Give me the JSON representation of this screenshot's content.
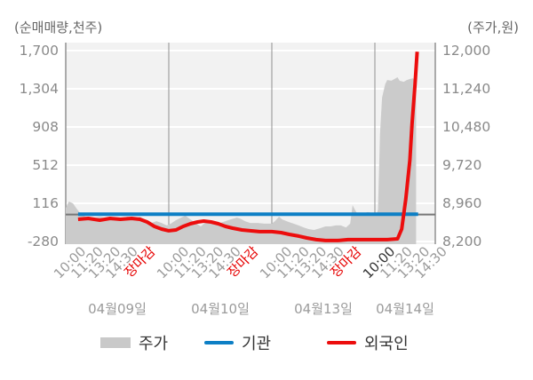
{
  "chart_data": {
    "type": "area+line",
    "title": "",
    "left_axis": {
      "caption": "(순매매량,천주)",
      "ticks": [
        {
          "label": "1,700",
          "value": 1700
        },
        {
          "label": "1,304",
          "value": 1304
        },
        {
          "label": "908",
          "value": 908
        },
        {
          "label": "512",
          "value": 512
        },
        {
          "label": "116",
          "value": 116
        },
        {
          "label": "-280",
          "value": -280
        }
      ]
    },
    "right_axis": {
      "caption": "(주가,원)",
      "ticks": [
        {
          "label": "12,000",
          "value": 12000
        },
        {
          "label": "11,240",
          "value": 11240
        },
        {
          "label": "10,480",
          "value": 10480
        },
        {
          "label": "9,720",
          "value": 9720
        },
        {
          "label": "8,960",
          "value": 8960
        },
        {
          "label": "8,200",
          "value": 8200
        }
      ]
    },
    "days": [
      {
        "label": "04월09일",
        "times": [
          "10:00",
          "11:20",
          "13:20",
          "14:30",
          "장마감"
        ]
      },
      {
        "label": "04월10일",
        "times": [
          "10:00",
          "11:20",
          "13:20",
          "14:30",
          "장마감"
        ]
      },
      {
        "label": "04월13일",
        "times": [
          "10:00",
          "11:20",
          "13:20",
          "14:30",
          "장마감"
        ]
      },
      {
        "label": "04월14일",
        "times": [
          "10:00",
          "11:20",
          "13:20",
          "14:30"
        ],
        "highlight_first_time": true
      }
    ],
    "colors": {
      "plot_background": "#f2f2f2",
      "gridline": "#ffffff",
      "day_separator": "#909090",
      "axis_line": "#909090",
      "zero_line": "#777777",
      "tick_text": "#8a8a8a",
      "time_text": "#9b9b9b",
      "time_text_close": "#e60000",
      "time_text_highlight": "#333333"
    },
    "series": [
      {
        "name": "주가",
        "type": "area",
        "axis": "right",
        "color": "#cbcbcb",
        "points": [
          [
            0.0,
            8870
          ],
          [
            0.03,
            8995
          ],
          [
            0.07,
            8960
          ],
          [
            0.1,
            8870
          ],
          [
            0.14,
            8765
          ],
          [
            0.19,
            8695
          ],
          [
            0.26,
            8660
          ],
          [
            0.33,
            8695
          ],
          [
            0.4,
            8660
          ],
          [
            0.47,
            8680
          ],
          [
            0.53,
            8660
          ],
          [
            0.6,
            8695
          ],
          [
            0.67,
            8660
          ],
          [
            0.72,
            8695
          ],
          [
            0.78,
            8625
          ],
          [
            0.83,
            8570
          ],
          [
            0.88,
            8605
          ],
          [
            0.93,
            8570
          ],
          [
            0.98,
            8520
          ],
          [
            1.02,
            8555
          ],
          [
            1.07,
            8625
          ],
          [
            1.12,
            8675
          ],
          [
            1.16,
            8715
          ],
          [
            1.21,
            8640
          ],
          [
            1.26,
            8570
          ],
          [
            1.31,
            8500
          ],
          [
            1.35,
            8570
          ],
          [
            1.4,
            8590
          ],
          [
            1.45,
            8555
          ],
          [
            1.5,
            8570
          ],
          [
            1.55,
            8605
          ],
          [
            1.6,
            8640
          ],
          [
            1.66,
            8675
          ],
          [
            1.69,
            8660
          ],
          [
            1.74,
            8605
          ],
          [
            1.79,
            8570
          ],
          [
            1.86,
            8570
          ],
          [
            1.93,
            8555
          ],
          [
            2.0,
            8555
          ],
          [
            2.03,
            8605
          ],
          [
            2.07,
            8695
          ],
          [
            2.1,
            8640
          ],
          [
            2.16,
            8590
          ],
          [
            2.21,
            8555
          ],
          [
            2.26,
            8520
          ],
          [
            2.31,
            8480
          ],
          [
            2.36,
            8445
          ],
          [
            2.41,
            8430
          ],
          [
            2.47,
            8465
          ],
          [
            2.52,
            8500
          ],
          [
            2.57,
            8500
          ],
          [
            2.62,
            8520
          ],
          [
            2.67,
            8520
          ],
          [
            2.72,
            8480
          ],
          [
            2.76,
            8555
          ],
          [
            2.784,
            8925
          ],
          [
            2.8,
            8855
          ],
          [
            2.83,
            8750
          ],
          [
            2.88,
            8750
          ],
          [
            2.93,
            8785
          ],
          [
            2.98,
            8765
          ],
          [
            3.02,
            8765
          ],
          [
            3.03,
            8835
          ],
          [
            3.05,
            10355
          ],
          [
            3.07,
            11065
          ],
          [
            3.1,
            11330
          ],
          [
            3.12,
            11415
          ],
          [
            3.16,
            11400
          ],
          [
            3.19,
            11435
          ],
          [
            3.22,
            11470
          ],
          [
            3.24,
            11400
          ],
          [
            3.28,
            11380
          ],
          [
            3.31,
            11415
          ],
          [
            3.34,
            11435
          ],
          [
            3.37,
            11450
          ],
          [
            3.39,
            11400
          ],
          [
            3.4,
            11330
          ]
        ]
      },
      {
        "name": "기관",
        "type": "line",
        "axis": "left",
        "color": "#0d7fc5",
        "points": [
          [
            0.12,
            3
          ],
          [
            1.0,
            3
          ],
          [
            2.0,
            3
          ],
          [
            3.0,
            3
          ],
          [
            3.42,
            3
          ]
        ]
      },
      {
        "name": "외국인",
        "type": "line",
        "axis": "left",
        "color": "#ec0d0d",
        "points": [
          [
            0.12,
            -50
          ],
          [
            0.22,
            -41
          ],
          [
            0.33,
            -59
          ],
          [
            0.43,
            -41
          ],
          [
            0.53,
            -50
          ],
          [
            0.64,
            -41
          ],
          [
            0.72,
            -50
          ],
          [
            0.79,
            -77
          ],
          [
            0.86,
            -123
          ],
          [
            0.93,
            -151
          ],
          [
            1.0,
            -169
          ],
          [
            1.07,
            -160
          ],
          [
            1.14,
            -123
          ],
          [
            1.21,
            -96
          ],
          [
            1.28,
            -77
          ],
          [
            1.34,
            -68
          ],
          [
            1.41,
            -77
          ],
          [
            1.48,
            -96
          ],
          [
            1.55,
            -123
          ],
          [
            1.62,
            -142
          ],
          [
            1.71,
            -160
          ],
          [
            1.79,
            -169
          ],
          [
            1.88,
            -178
          ],
          [
            2.0,
            -178
          ],
          [
            2.09,
            -188
          ],
          [
            2.17,
            -206
          ],
          [
            2.26,
            -224
          ],
          [
            2.34,
            -243
          ],
          [
            2.43,
            -261
          ],
          [
            2.52,
            -270
          ],
          [
            2.64,
            -270
          ],
          [
            2.74,
            -261
          ],
          [
            3.0,
            -261
          ],
          [
            3.12,
            -261
          ],
          [
            3.22,
            -252
          ],
          [
            3.26,
            -151
          ],
          [
            3.3,
            160
          ],
          [
            3.34,
            565
          ],
          [
            3.36,
            935
          ],
          [
            3.39,
            1350
          ],
          [
            3.41,
            1688
          ]
        ]
      }
    ]
  },
  "legend": {
    "items": [
      {
        "label": "주가",
        "swatch": "area",
        "color": "#c9c9c9"
      },
      {
        "label": "기관",
        "swatch": "line",
        "color": "#0d7fc5"
      },
      {
        "label": "외국인",
        "swatch": "line",
        "color": "#ec0d0d"
      }
    ]
  }
}
